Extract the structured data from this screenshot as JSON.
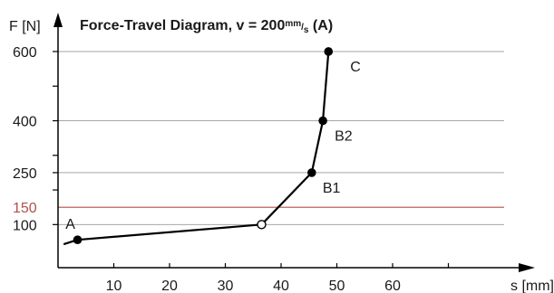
{
  "chart_data": {
    "type": "line",
    "title": {
      "prefix": "Force-Travel Diagram, v = 200",
      "unit_top": "mm",
      "unit_sep": "/",
      "unit_bottom": "s",
      "suffix": " (A)"
    },
    "xlabel": "s [mm]",
    "ylabel": "F [N]",
    "xlim": [
      0,
      70
    ],
    "ylim": [
      40,
      640
    ],
    "x_ticks": [
      10,
      20,
      30,
      40,
      50,
      60,
      70
    ],
    "x_tick_labels": [
      "10",
      "20",
      "30",
      "40",
      "50",
      "60"
    ],
    "y_tick_labels": [
      {
        "value": 100,
        "label": "100"
      },
      {
        "value": 250,
        "label": "250"
      },
      {
        "value": 400,
        "label": "400"
      },
      {
        "value": 600,
        "label": "600"
      }
    ],
    "y_minor_ticks": [
      200,
      300,
      500
    ],
    "gridlines": [
      100,
      250,
      400,
      600
    ],
    "threshold": {
      "value": 150,
      "label": "150",
      "color": "#b0504b"
    },
    "series": [
      {
        "values": [
          {
            "x": 1,
            "y": 43
          },
          {
            "x": 3.5,
            "y": 56,
            "label": "A",
            "marker": "filled"
          },
          {
            "x": 36.5,
            "y": 100,
            "marker": "open"
          },
          {
            "x": 45.5,
            "y": 250,
            "label": "B1",
            "marker": "filled"
          },
          {
            "x": 47.5,
            "y": 400,
            "label": "B2",
            "marker": "filled"
          },
          {
            "x": 48.5,
            "y": 600,
            "label": "C",
            "marker": "filled"
          }
        ]
      }
    ],
    "colors": {
      "line": "#000000",
      "grid": "#a6a6a6",
      "axis": "#000000"
    }
  }
}
